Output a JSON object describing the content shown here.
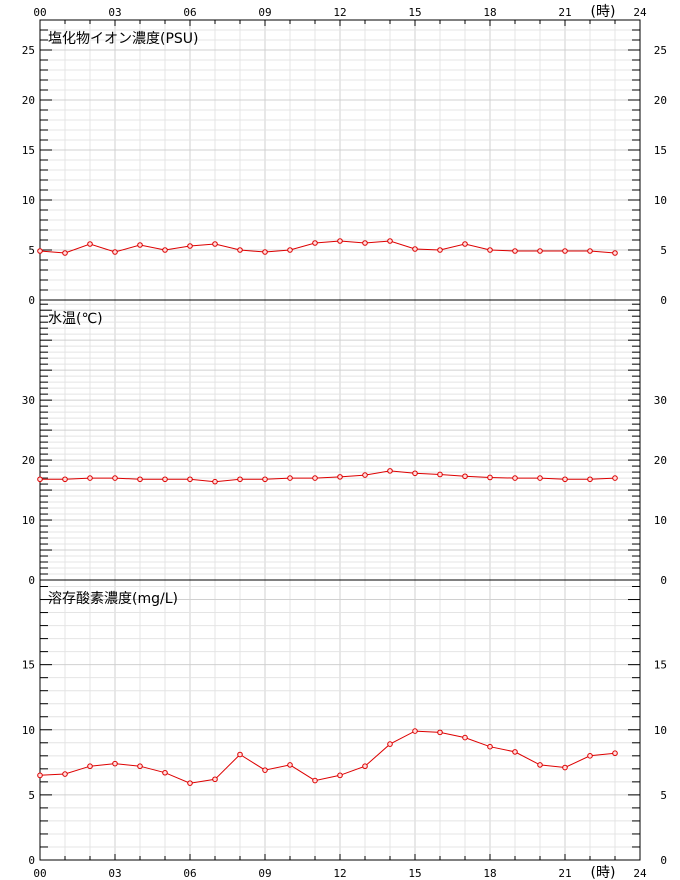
{
  "hours_unit": "(時)",
  "x_ticks": [
    "00",
    "03",
    "06",
    "09",
    "12",
    "15",
    "18",
    "21",
    "24"
  ],
  "colors": {
    "series": "#dd0000",
    "grid_major": "#d0d0d0",
    "grid_minor": "#e4e4e4",
    "axis": "#000000"
  },
  "chart_data": [
    {
      "type": "line",
      "title": "塩化物イオン濃度(PSU)",
      "xlim": [
        0,
        24
      ],
      "ylim": [
        0,
        28
      ],
      "y_ticks": [
        0,
        5,
        10,
        15,
        20,
        25
      ],
      "grid": true,
      "x": [
        0,
        1,
        2,
        3,
        4,
        5,
        6,
        7,
        8,
        9,
        10,
        11,
        12,
        13,
        14,
        15,
        16,
        17,
        18,
        19,
        20,
        21,
        22,
        23
      ],
      "series": [
        {
          "values": [
            4.9,
            4.7,
            5.6,
            4.8,
            5.5,
            5.0,
            5.4,
            5.6,
            5.0,
            4.8,
            5.0,
            5.7,
            5.9,
            5.7,
            5.9,
            5.1,
            5.0,
            5.6,
            5.0,
            4.9,
            4.9,
            4.9,
            4.9,
            4.7
          ]
        }
      ]
    },
    {
      "type": "line",
      "title": "水温(℃)",
      "xlim": [
        0,
        24
      ],
      "ylim": [
        0,
        46.7
      ],
      "y_ticks": [
        0,
        10,
        20,
        30
      ],
      "grid": true,
      "x": [
        0,
        1,
        2,
        3,
        4,
        5,
        6,
        7,
        8,
        9,
        10,
        11,
        12,
        13,
        14,
        15,
        16,
        17,
        18,
        19,
        20,
        21,
        22,
        23
      ],
      "series": [
        {
          "values": [
            16.8,
            16.8,
            17.0,
            17.0,
            16.8,
            16.8,
            16.8,
            16.4,
            16.8,
            16.8,
            17.0,
            17.0,
            17.2,
            17.5,
            18.2,
            17.8,
            17.6,
            17.3,
            17.1,
            17.0,
            17.0,
            16.8,
            16.8,
            17.0
          ]
        }
      ]
    },
    {
      "type": "line",
      "title": "溶存酸素濃度(mg/L)",
      "xlim": [
        0,
        24
      ],
      "ylim": [
        0,
        21.5
      ],
      "y_ticks": [
        0,
        5,
        10,
        15
      ],
      "grid": true,
      "x": [
        0,
        1,
        2,
        3,
        4,
        5,
        6,
        7,
        8,
        9,
        10,
        11,
        12,
        13,
        14,
        15,
        16,
        17,
        18,
        19,
        20,
        21,
        22,
        23
      ],
      "series": [
        {
          "values": [
            6.5,
            6.6,
            7.2,
            7.4,
            7.2,
            6.7,
            5.9,
            6.2,
            8.1,
            6.9,
            7.3,
            6.1,
            6.5,
            7.2,
            8.9,
            9.9,
            9.8,
            9.4,
            8.7,
            8.3,
            7.3,
            7.1,
            8.0,
            8.2
          ]
        }
      ]
    }
  ]
}
